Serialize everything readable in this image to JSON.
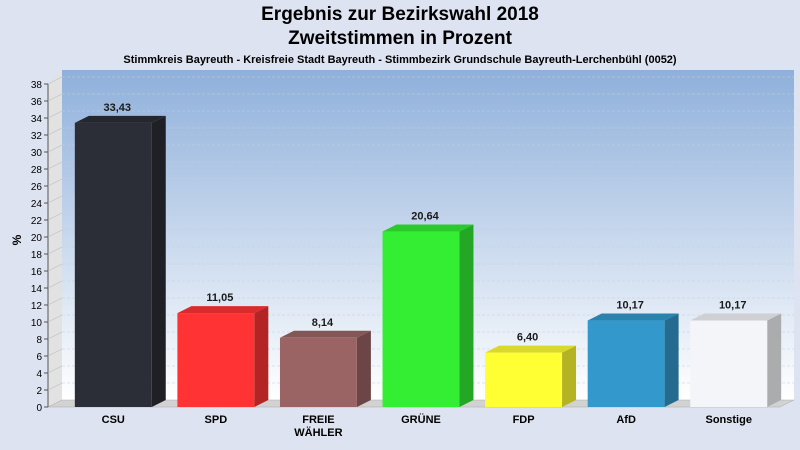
{
  "chart_data": {
    "type": "bar",
    "title": "Ergebnis zur Bezirkswahl 2018",
    "subtitle": "Zweitstimmen in Prozent",
    "subtitle2": "Stimmkreis Bayreuth - Kreisfreie Stadt Bayreuth - Stimmbezirk Grundschule Bayreuth-Lerchenbühl (0052)",
    "ylabel": "%",
    "xlabel": "",
    "ylim": [
      0,
      38
    ],
    "ytick_step": 2,
    "grid": true,
    "categories": [
      [
        "CSU"
      ],
      [
        "SPD"
      ],
      [
        "FREIE",
        "WÄHLER"
      ],
      [
        "GRÜNE"
      ],
      [
        "FDP"
      ],
      [
        "AfD"
      ],
      [
        "Sonstige"
      ]
    ],
    "values": [
      33.43,
      11.05,
      8.14,
      20.64,
      6.4,
      10.17,
      10.17
    ],
    "value_labels": [
      "33,43",
      "11,05",
      "8,14",
      "20,64",
      "6,40",
      "10,17",
      "10,17"
    ],
    "colors": [
      "#2b2e36",
      "#ff3333",
      "#9a6464",
      "#33ee33",
      "#ffff33",
      "#3399cc",
      "#f4f5f8"
    ]
  }
}
